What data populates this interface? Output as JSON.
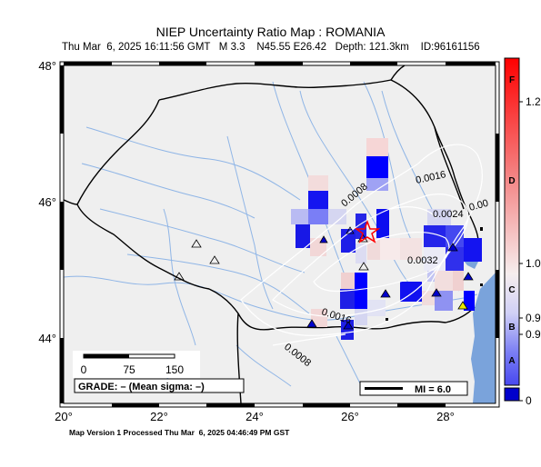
{
  "title": "NIEP Uncertainty Ratio Map : ROMANIA",
  "subtitle": "Thu Mar  6, 2025 16:11:56 GMT   M 3.3    N45.55 E26.42   Depth: 121.3km    ID:96161156",
  "footer": "Map Version 1 Processed Thu Mar  6, 2025 04:46:49 PM GST",
  "axes": {
    "x_ticks": [
      "20°",
      "22°",
      "24°",
      "26°",
      "28°"
    ],
    "y_ticks": [
      "48°",
      "46°",
      "44°"
    ]
  },
  "contours": [
    "0.0016",
    "0.0008",
    "0.0024",
    "0.00",
    "0.0032",
    "0.0016",
    "0.0008"
  ],
  "scale_bar": {
    "labels": [
      "0",
      "75",
      "150"
    ]
  },
  "grade_text": "GRADE: – (Mean sigma: –)",
  "mi_text": "MI = 6.0",
  "colorbar": {
    "letters": [
      "F",
      "D",
      "C",
      "B",
      "A"
    ],
    "values": [
      "1.2",
      "1.0",
      "0.9",
      "0.9",
      "0"
    ]
  },
  "colors": {
    "land": "#efefef",
    "sea": "#7aa3db",
    "river": "#8fb5e6",
    "border": "#000000",
    "high": "#0000ff",
    "low": "#ff0000",
    "epicenter": "#ff0000"
  }
}
